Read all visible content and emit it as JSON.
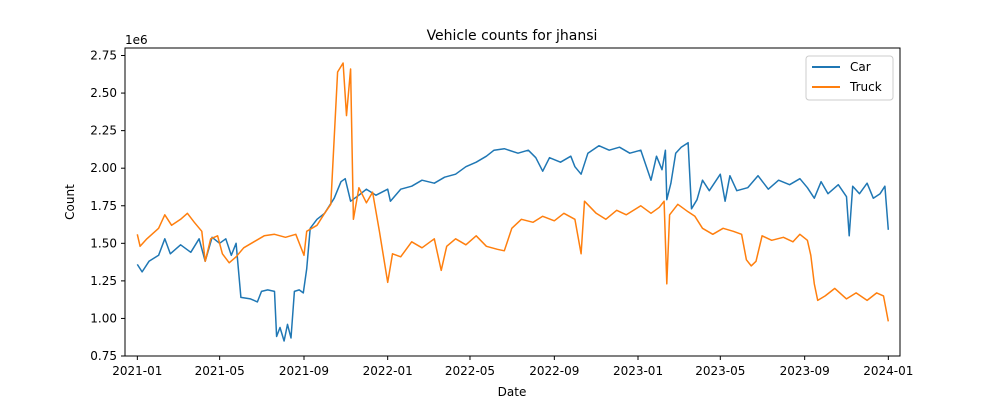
{
  "chart_data": {
    "type": "line",
    "title": "Vehicle counts for jhansi",
    "xlabel": "Date",
    "ylabel": "Count",
    "y_scale_label": "1e6",
    "xlim": [
      "2020-12-14",
      "2024-01-18"
    ],
    "ylim": [
      750000,
      2800000
    ],
    "x_ticks": [
      "2021-01",
      "2021-05",
      "2021-09",
      "2022-01",
      "2022-05",
      "2022-09",
      "2023-01",
      "2023-05",
      "2023-09",
      "2024-01"
    ],
    "x_tick_dates": [
      "2021-01-01",
      "2021-05-01",
      "2021-09-01",
      "2022-01-01",
      "2022-05-01",
      "2022-09-01",
      "2023-01-01",
      "2023-05-01",
      "2023-09-01",
      "2024-01-01"
    ],
    "y_ticks": [
      "0.75",
      "1.00",
      "1.25",
      "1.50",
      "1.75",
      "2.00",
      "2.25",
      "2.50",
      "2.75"
    ],
    "y_tick_values": [
      750000,
      1000000,
      1250000,
      1500000,
      1750000,
      2000000,
      2250000,
      2500000,
      2750000
    ],
    "grid": false,
    "legend_position": "top-right",
    "series": [
      {
        "name": "Car",
        "color": "#1f77b4",
        "points": [
          [
            "2021-01-01",
            1360000
          ],
          [
            "2021-01-08",
            1310000
          ],
          [
            "2021-01-18",
            1380000
          ],
          [
            "2021-02-01",
            1420000
          ],
          [
            "2021-02-10",
            1530000
          ],
          [
            "2021-02-18",
            1430000
          ],
          [
            "2021-03-05",
            1490000
          ],
          [
            "2021-03-20",
            1440000
          ],
          [
            "2021-04-01",
            1530000
          ],
          [
            "2021-04-10",
            1380000
          ],
          [
            "2021-04-20",
            1540000
          ],
          [
            "2021-05-01",
            1500000
          ],
          [
            "2021-05-10",
            1530000
          ],
          [
            "2021-05-18",
            1420000
          ],
          [
            "2021-05-25",
            1500000
          ],
          [
            "2021-06-01",
            1140000
          ],
          [
            "2021-06-15",
            1130000
          ],
          [
            "2021-06-25",
            1110000
          ],
          [
            "2021-07-01",
            1180000
          ],
          [
            "2021-07-10",
            1190000
          ],
          [
            "2021-07-20",
            1180000
          ],
          [
            "2021-07-23",
            880000
          ],
          [
            "2021-07-28",
            940000
          ],
          [
            "2021-08-03",
            850000
          ],
          [
            "2021-08-08",
            960000
          ],
          [
            "2021-08-13",
            870000
          ],
          [
            "2021-08-18",
            1180000
          ],
          [
            "2021-08-25",
            1190000
          ],
          [
            "2021-08-31",
            1170000
          ],
          [
            "2021-09-05",
            1330000
          ],
          [
            "2021-09-10",
            1600000
          ],
          [
            "2021-09-20",
            1660000
          ],
          [
            "2021-10-01",
            1700000
          ],
          [
            "2021-10-15",
            1800000
          ],
          [
            "2021-10-25",
            1910000
          ],
          [
            "2021-10-31",
            1930000
          ],
          [
            "2021-11-08",
            1780000
          ],
          [
            "2021-11-20",
            1820000
          ],
          [
            "2021-12-01",
            1860000
          ],
          [
            "2021-12-15",
            1820000
          ],
          [
            "2022-01-01",
            1860000
          ],
          [
            "2022-01-05",
            1780000
          ],
          [
            "2022-01-20",
            1860000
          ],
          [
            "2022-02-05",
            1880000
          ],
          [
            "2022-02-20",
            1920000
          ],
          [
            "2022-03-10",
            1900000
          ],
          [
            "2022-03-25",
            1940000
          ],
          [
            "2022-04-10",
            1960000
          ],
          [
            "2022-04-25",
            2010000
          ],
          [
            "2022-05-10",
            2040000
          ],
          [
            "2022-05-25",
            2080000
          ],
          [
            "2022-06-05",
            2120000
          ],
          [
            "2022-06-20",
            2130000
          ],
          [
            "2022-07-10",
            2100000
          ],
          [
            "2022-07-25",
            2120000
          ],
          [
            "2022-08-05",
            2070000
          ],
          [
            "2022-08-15",
            1980000
          ],
          [
            "2022-08-25",
            2070000
          ],
          [
            "2022-09-10",
            2040000
          ],
          [
            "2022-09-25",
            2080000
          ],
          [
            "2022-10-01",
            2010000
          ],
          [
            "2022-10-10",
            1960000
          ],
          [
            "2022-10-20",
            2100000
          ],
          [
            "2022-11-05",
            2150000
          ],
          [
            "2022-11-20",
            2120000
          ],
          [
            "2022-12-05",
            2140000
          ],
          [
            "2022-12-20",
            2100000
          ],
          [
            "2023-01-05",
            2120000
          ],
          [
            "2023-01-20",
            1920000
          ],
          [
            "2023-01-28",
            2080000
          ],
          [
            "2023-02-05",
            1990000
          ],
          [
            "2023-02-10",
            2120000
          ],
          [
            "2023-02-12",
            1790000
          ],
          [
            "2023-02-18",
            1900000
          ],
          [
            "2023-02-25",
            2100000
          ],
          [
            "2023-03-05",
            2140000
          ],
          [
            "2023-03-15",
            2170000
          ],
          [
            "2023-03-20",
            1730000
          ],
          [
            "2023-03-28",
            1790000
          ],
          [
            "2023-04-05",
            1920000
          ],
          [
            "2023-04-15",
            1850000
          ],
          [
            "2023-05-01",
            1960000
          ],
          [
            "2023-05-08",
            1780000
          ],
          [
            "2023-05-15",
            1950000
          ],
          [
            "2023-05-25",
            1850000
          ],
          [
            "2023-06-10",
            1870000
          ],
          [
            "2023-06-25",
            1950000
          ],
          [
            "2023-07-10",
            1860000
          ],
          [
            "2023-07-25",
            1920000
          ],
          [
            "2023-08-10",
            1890000
          ],
          [
            "2023-08-25",
            1930000
          ],
          [
            "2023-09-05",
            1870000
          ],
          [
            "2023-09-15",
            1800000
          ],
          [
            "2023-09-25",
            1910000
          ],
          [
            "2023-10-05",
            1830000
          ],
          [
            "2023-10-20",
            1890000
          ],
          [
            "2023-11-01",
            1810000
          ],
          [
            "2023-11-05",
            1550000
          ],
          [
            "2023-11-10",
            1880000
          ],
          [
            "2023-11-20",
            1830000
          ],
          [
            "2023-12-01",
            1900000
          ],
          [
            "2023-12-10",
            1800000
          ],
          [
            "2023-12-20",
            1830000
          ],
          [
            "2023-12-27",
            1880000
          ],
          [
            "2024-01-01",
            1590000
          ]
        ]
      },
      {
        "name": "Truck",
        "color": "#ff7f0e",
        "points": [
          [
            "2021-01-01",
            1560000
          ],
          [
            "2021-01-05",
            1480000
          ],
          [
            "2021-01-15",
            1530000
          ],
          [
            "2021-02-01",
            1600000
          ],
          [
            "2021-02-10",
            1690000
          ],
          [
            "2021-02-20",
            1620000
          ],
          [
            "2021-03-05",
            1660000
          ],
          [
            "2021-03-15",
            1700000
          ],
          [
            "2021-03-25",
            1640000
          ],
          [
            "2021-04-05",
            1580000
          ],
          [
            "2021-04-10",
            1380000
          ],
          [
            "2021-04-18",
            1530000
          ],
          [
            "2021-04-28",
            1550000
          ],
          [
            "2021-05-05",
            1430000
          ],
          [
            "2021-05-15",
            1370000
          ],
          [
            "2021-05-25",
            1410000
          ],
          [
            "2021-06-05",
            1470000
          ],
          [
            "2021-06-20",
            1510000
          ],
          [
            "2021-07-05",
            1550000
          ],
          [
            "2021-07-20",
            1560000
          ],
          [
            "2021-08-05",
            1540000
          ],
          [
            "2021-08-20",
            1560000
          ],
          [
            "2021-09-01",
            1420000
          ],
          [
            "2021-09-05",
            1580000
          ],
          [
            "2021-09-20",
            1620000
          ],
          [
            "2021-10-01",
            1700000
          ],
          [
            "2021-10-10",
            1760000
          ],
          [
            "2021-10-15",
            2200000
          ],
          [
            "2021-10-20",
            2640000
          ],
          [
            "2021-10-28",
            2700000
          ],
          [
            "2021-11-02",
            2350000
          ],
          [
            "2021-11-08",
            2660000
          ],
          [
            "2021-11-12",
            1660000
          ],
          [
            "2021-11-20",
            1870000
          ],
          [
            "2021-12-01",
            1770000
          ],
          [
            "2021-12-10",
            1840000
          ],
          [
            "2021-12-20",
            1580000
          ],
          [
            "2022-01-01",
            1240000
          ],
          [
            "2022-01-08",
            1430000
          ],
          [
            "2022-01-20",
            1410000
          ],
          [
            "2022-02-05",
            1510000
          ],
          [
            "2022-02-20",
            1470000
          ],
          [
            "2022-03-10",
            1530000
          ],
          [
            "2022-03-20",
            1320000
          ],
          [
            "2022-03-28",
            1480000
          ],
          [
            "2022-04-10",
            1530000
          ],
          [
            "2022-04-25",
            1490000
          ],
          [
            "2022-05-10",
            1550000
          ],
          [
            "2022-05-25",
            1480000
          ],
          [
            "2022-06-10",
            1460000
          ],
          [
            "2022-06-20",
            1450000
          ],
          [
            "2022-07-01",
            1600000
          ],
          [
            "2022-07-15",
            1660000
          ],
          [
            "2022-08-01",
            1640000
          ],
          [
            "2022-08-15",
            1680000
          ],
          [
            "2022-09-01",
            1650000
          ],
          [
            "2022-09-15",
            1700000
          ],
          [
            "2022-10-01",
            1660000
          ],
          [
            "2022-10-10",
            1430000
          ],
          [
            "2022-10-15",
            1780000
          ],
          [
            "2022-11-01",
            1700000
          ],
          [
            "2022-11-15",
            1660000
          ],
          [
            "2022-12-01",
            1720000
          ],
          [
            "2022-12-15",
            1690000
          ],
          [
            "2023-01-05",
            1750000
          ],
          [
            "2023-01-20",
            1700000
          ],
          [
            "2023-02-01",
            1740000
          ],
          [
            "2023-02-08",
            1780000
          ],
          [
            "2023-02-12",
            1230000
          ],
          [
            "2023-02-16",
            1690000
          ],
          [
            "2023-02-28",
            1760000
          ],
          [
            "2023-03-15",
            1710000
          ],
          [
            "2023-03-25",
            1680000
          ],
          [
            "2023-04-05",
            1600000
          ],
          [
            "2023-04-20",
            1560000
          ],
          [
            "2023-05-05",
            1600000
          ],
          [
            "2023-05-20",
            1580000
          ],
          [
            "2023-06-01",
            1560000
          ],
          [
            "2023-06-08",
            1390000
          ],
          [
            "2023-06-15",
            1350000
          ],
          [
            "2023-06-22",
            1380000
          ],
          [
            "2023-07-01",
            1550000
          ],
          [
            "2023-07-15",
            1520000
          ],
          [
            "2023-08-01",
            1540000
          ],
          [
            "2023-08-15",
            1510000
          ],
          [
            "2023-08-25",
            1560000
          ],
          [
            "2023-09-05",
            1520000
          ],
          [
            "2023-09-10",
            1420000
          ],
          [
            "2023-09-15",
            1230000
          ],
          [
            "2023-09-20",
            1120000
          ],
          [
            "2023-10-01",
            1150000
          ],
          [
            "2023-10-15",
            1200000
          ],
          [
            "2023-11-01",
            1130000
          ],
          [
            "2023-11-15",
            1170000
          ],
          [
            "2023-12-01",
            1120000
          ],
          [
            "2023-12-15",
            1170000
          ],
          [
            "2023-12-25",
            1150000
          ],
          [
            "2024-01-01",
            980000
          ]
        ]
      }
    ]
  }
}
